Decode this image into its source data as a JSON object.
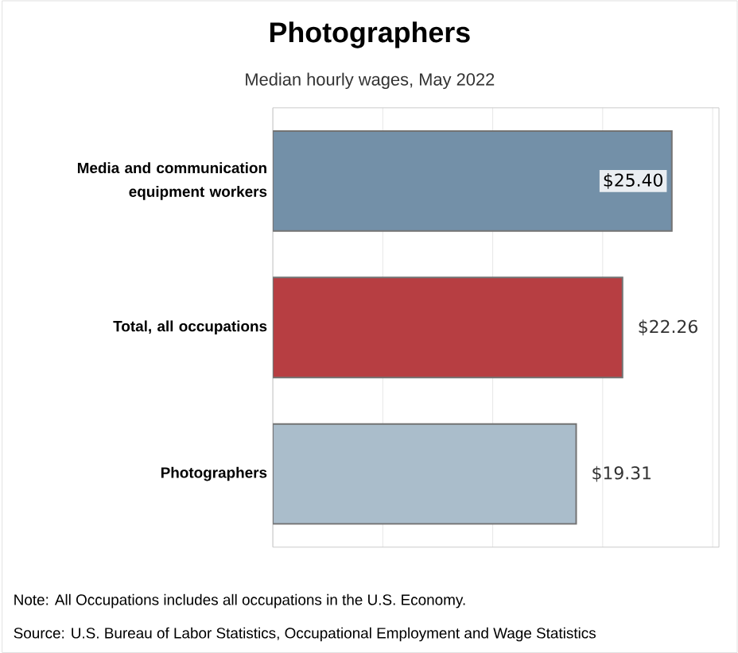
{
  "chart_data": {
    "type": "bar",
    "orientation": "horizontal",
    "title": "Photographers",
    "subtitle": "Median hourly wages, May 2022",
    "categories": [
      "Media and communication equipment workers",
      "Total, all occupations",
      "Photographers"
    ],
    "values": [
      25.4,
      22.26,
      19.31
    ],
    "colors": [
      "#7390a8",
      "#b73e42",
      "#aabdcb"
    ],
    "value_labels": [
      "$25.40",
      "$22.26",
      "$19.31"
    ],
    "xlim": [
      0,
      28.4
    ],
    "xticks": [
      {
        "value": 0,
        "label": null
      },
      {
        "value": 7,
        "label": null
      },
      {
        "value": 14,
        "label": null
      },
      {
        "value": 21,
        "label": null
      },
      {
        "value": 28,
        "label": null
      }
    ],
    "grid": "x",
    "tick_labels": "y",
    "annotations": [
      "Note: All Occupations includes all occupations in the U.S. Economy.",
      "Source: U.S. Bureau of Labor Statistics, Occupational Employment and Wage Statistics"
    ]
  }
}
